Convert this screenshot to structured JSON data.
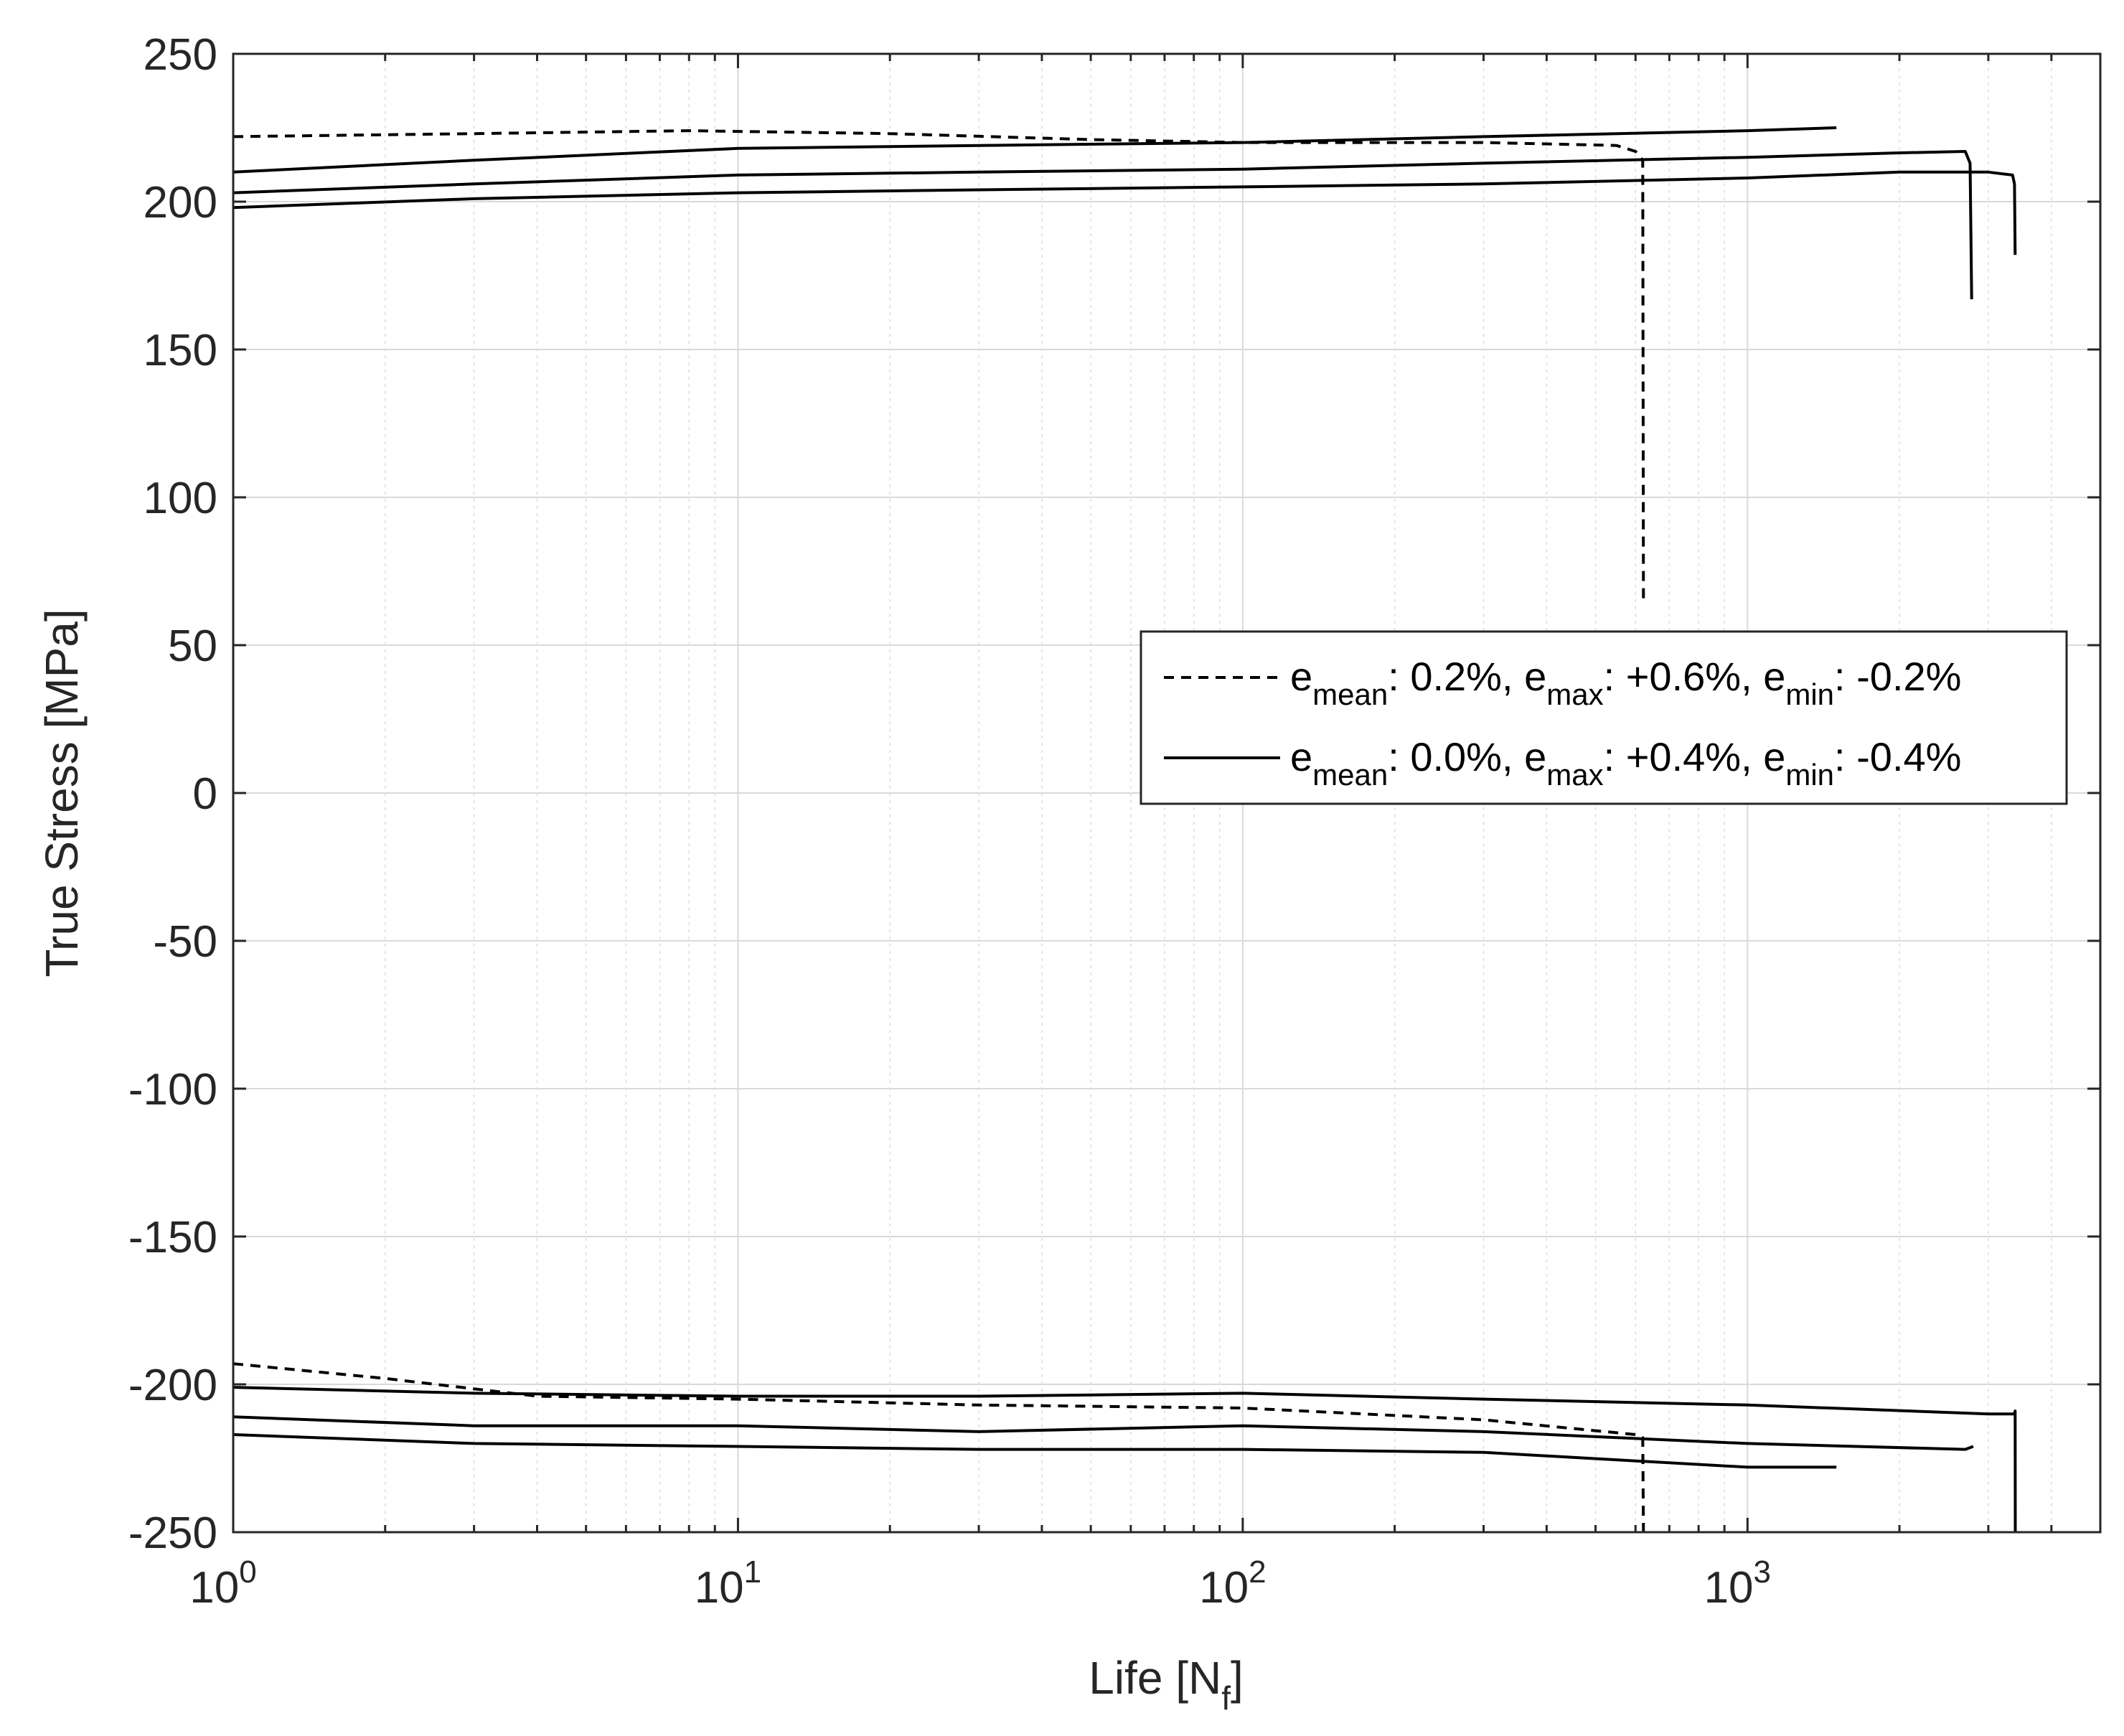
{
  "chart_data": {
    "type": "line",
    "xlabel": {
      "text": "Life [N",
      "sub": "f",
      "close": "]"
    },
    "ylabel": "True Stress [MPa]",
    "xscale": "log",
    "xlim": [
      1,
      5000
    ],
    "ylim": [
      -250,
      250
    ],
    "grid": true,
    "minor_grid_x": true,
    "x_ticks": [
      {
        "value": 1,
        "base": "10",
        "exp": "0"
      },
      {
        "value": 10,
        "base": "10",
        "exp": "1"
      },
      {
        "value": 100,
        "base": "10",
        "exp": "2"
      },
      {
        "value": 1000,
        "base": "10",
        "exp": "3"
      }
    ],
    "y_ticks": [
      250,
      200,
      150,
      100,
      50,
      0,
      -50,
      -100,
      -150,
      -200,
      -250
    ],
    "legend": {
      "position": "center-right",
      "entries": [
        {
          "style": "dashed",
          "label": [
            [
              "e",
              "mean",
              ": 0.2%, "
            ],
            [
              "e",
              "max",
              ": +0.6%, "
            ],
            [
              "e",
              "min",
              ": -0.2%"
            ]
          ]
        },
        {
          "style": "solid",
          "label": [
            [
              "e",
              "mean",
              ": 0.0%, "
            ],
            [
              "e",
              "max",
              ": +0.4%, "
            ],
            [
              "e",
              "min",
              ": -0.4%"
            ]
          ]
        }
      ]
    },
    "series": [
      {
        "style": "dashed",
        "points": [
          [
            1,
            222
          ],
          [
            3,
            223
          ],
          [
            8,
            224
          ],
          [
            20,
            223
          ],
          [
            50,
            221
          ],
          [
            100,
            220
          ],
          [
            300,
            220
          ],
          [
            550,
            219
          ],
          [
            600,
            217
          ],
          [
            620,
            214
          ],
          [
            622,
            65
          ]
        ]
      },
      {
        "style": "dashed",
        "points": [
          [
            1,
            -193
          ],
          [
            2,
            -198
          ],
          [
            4,
            -204
          ],
          [
            10,
            -205
          ],
          [
            30,
            -207
          ],
          [
            100,
            -208
          ],
          [
            300,
            -212
          ],
          [
            600,
            -217
          ],
          [
            620,
            -218
          ],
          [
            622,
            -250
          ]
        ]
      },
      {
        "style": "solid",
        "points": [
          [
            1,
            210
          ],
          [
            3,
            214
          ],
          [
            10,
            218
          ],
          [
            30,
            219
          ],
          [
            100,
            220
          ],
          [
            300,
            222
          ],
          [
            1000,
            224
          ],
          [
            1500,
            225
          ]
        ]
      },
      {
        "style": "solid",
        "points": [
          [
            1,
            203
          ],
          [
            3,
            206
          ],
          [
            10,
            209
          ],
          [
            30,
            210
          ],
          [
            100,
            211
          ],
          [
            300,
            213
          ],
          [
            1000,
            215
          ],
          [
            2000,
            216.5
          ],
          [
            2700,
            217
          ],
          [
            2760,
            213
          ],
          [
            2780,
            167
          ]
        ]
      },
      {
        "style": "solid",
        "points": [
          [
            1,
            198
          ],
          [
            3,
            201
          ],
          [
            10,
            203
          ],
          [
            30,
            204
          ],
          [
            100,
            205
          ],
          [
            300,
            206
          ],
          [
            1000,
            208
          ],
          [
            2000,
            210
          ],
          [
            3000,
            210
          ],
          [
            3350,
            209
          ],
          [
            3380,
            206
          ],
          [
            3390,
            182
          ]
        ]
      },
      {
        "style": "solid",
        "points": [
          [
            1,
            -201
          ],
          [
            3,
            -203
          ],
          [
            10,
            -204
          ],
          [
            30,
            -204
          ],
          [
            100,
            -203
          ],
          [
            300,
            -205
          ],
          [
            1000,
            -207
          ],
          [
            3000,
            -210
          ],
          [
            3380,
            -210
          ],
          [
            3390,
            -209
          ],
          [
            3392,
            -250
          ]
        ]
      },
      {
        "style": "solid",
        "points": [
          [
            1,
            -211
          ],
          [
            3,
            -214
          ],
          [
            10,
            -214
          ],
          [
            30,
            -216
          ],
          [
            100,
            -214
          ],
          [
            300,
            -216
          ],
          [
            1000,
            -220
          ],
          [
            2700,
            -222
          ],
          [
            2800,
            -221
          ]
        ]
      },
      {
        "style": "solid",
        "points": [
          [
            1,
            -217
          ],
          [
            3,
            -220
          ],
          [
            10,
            -221
          ],
          [
            30,
            -222
          ],
          [
            100,
            -222
          ],
          [
            300,
            -223
          ],
          [
            1000,
            -228
          ],
          [
            1500,
            -228
          ]
        ]
      }
    ]
  }
}
